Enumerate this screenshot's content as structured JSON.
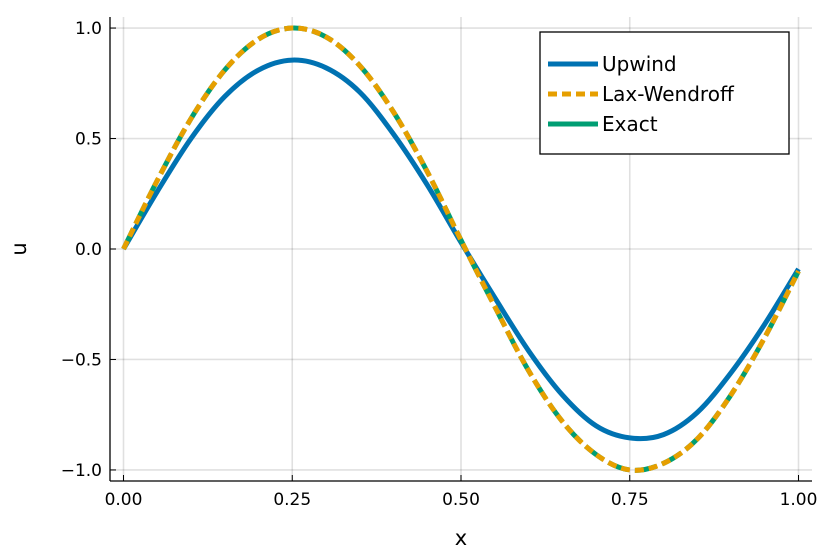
{
  "chart_data": {
    "type": "line",
    "title": "",
    "xlabel": "x",
    "ylabel": "u",
    "xlim": [
      -0.02,
      1.02
    ],
    "ylim": [
      -1.05,
      1.05
    ],
    "xticks": [
      0.0,
      0.25,
      0.5,
      0.75,
      1.0
    ],
    "xtick_labels": [
      "0.00",
      "0.25",
      "0.50",
      "0.75",
      "1.00"
    ],
    "yticks": [
      -1.0,
      -0.5,
      0.0,
      0.5,
      1.0
    ],
    "ytick_labels": [
      "−1.0",
      "−0.5",
      "0.0",
      "0.5",
      "1.0"
    ],
    "grid": true,
    "legend_position": "top-right",
    "x": [
      0.0,
      0.05,
      0.1,
      0.15,
      0.2,
      0.25,
      0.3,
      0.35,
      0.4,
      0.45,
      0.5,
      0.55,
      0.6,
      0.65,
      0.7,
      0.75,
      0.8,
      0.85,
      0.9,
      0.95,
      1.0
    ],
    "series": [
      {
        "name": "Upwind",
        "color": "#0072b2",
        "style": "solid",
        "values": [
          0.0,
          0.26,
          0.5,
          0.69,
          0.81,
          0.855,
          0.82,
          0.71,
          0.52,
          0.29,
          0.03,
          -0.22,
          -0.46,
          -0.66,
          -0.8,
          -0.855,
          -0.84,
          -0.74,
          -0.56,
          -0.34,
          -0.09
        ]
      },
      {
        "name": "Lax-Wendroff",
        "color": "#e69f00",
        "style": "dash",
        "values": [
          0.0,
          0.31,
          0.59,
          0.81,
          0.95,
          1.0,
          0.96,
          0.83,
          0.62,
          0.35,
          0.04,
          -0.26,
          -0.55,
          -0.78,
          -0.93,
          -1.0,
          -0.97,
          -0.86,
          -0.66,
          -0.4,
          -0.1
        ]
      },
      {
        "name": "Exact",
        "color": "#009e73",
        "style": "longdash",
        "values": [
          0.0,
          0.31,
          0.59,
          0.81,
          0.95,
          1.0,
          0.96,
          0.83,
          0.62,
          0.35,
          0.04,
          -0.26,
          -0.55,
          -0.78,
          -0.93,
          -1.0,
          -0.97,
          -0.86,
          -0.66,
          -0.4,
          -0.1
        ]
      }
    ]
  }
}
